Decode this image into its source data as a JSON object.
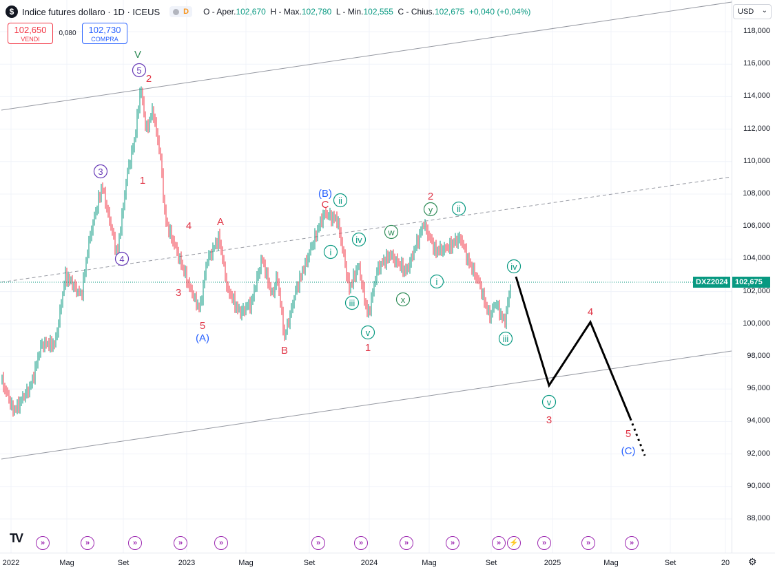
{
  "header": {
    "symbol_icon": "$",
    "title": "Indice futures dollaro · 1D · ICEUS",
    "delay_badge": "D",
    "ohlc": {
      "open_label": "O - Aper.",
      "open": "102,670",
      "high_label": "H - Max.",
      "high": "102,780",
      "low_label": "L - Min.",
      "low": "102,555",
      "close_label": "C - Chius.",
      "close": "102,675",
      "change": "+0,040 (+0,04%)"
    }
  },
  "trade": {
    "sell_price": "102,650",
    "sell_label": "VENDI",
    "spread": "0,080",
    "buy_price": "102,730",
    "buy_label": "COMPRA"
  },
  "currency_select": {
    "value": "USD",
    "icon": "chevron-down-icon"
  },
  "price_axis": {
    "labels": [
      "118,000",
      "116,000",
      "114,000",
      "112,000",
      "110,000",
      "108,000",
      "106,000",
      "104,000",
      "102,000",
      "100,000",
      "98,000",
      "96,000",
      "94,000",
      "92,000",
      "90,000",
      "88,000"
    ],
    "symbol_tag": "DXZ2024",
    "last_price_tag": "102,675"
  },
  "time_axis": {
    "labels": [
      "2022",
      "Mag",
      "Set",
      "2023",
      "Mag",
      "Set",
      "2024",
      "Mag",
      "Set",
      "2025",
      "Mag",
      "Set",
      "20"
    ]
  },
  "colors": {
    "up": "#089981",
    "down": "#f23645",
    "wave_red": "#e03546",
    "wave_blue": "#2962ff",
    "wave_purple": "#673ab7",
    "wave_green": "#2e8b57",
    "wave_teal": "#089981"
  },
  "wave_labels": [
    {
      "t": "V",
      "c": "green"
    },
    {
      "t": "5",
      "c": "purple",
      "circle": true
    },
    {
      "t": "2",
      "c": "red"
    },
    {
      "t": "3",
      "c": "purple",
      "circle": true
    },
    {
      "t": "1",
      "c": "red"
    },
    {
      "t": "4",
      "c": "purple",
      "circle": true
    },
    {
      "t": "4",
      "c": "red"
    },
    {
      "t": "3",
      "c": "red"
    },
    {
      "t": "5",
      "c": "red"
    },
    {
      "t": "(A)",
      "c": "blue"
    },
    {
      "t": "A",
      "c": "red"
    },
    {
      "t": "B",
      "c": "red"
    },
    {
      "t": "(B)",
      "c": "blue"
    },
    {
      "t": "C",
      "c": "red"
    },
    {
      "t": "ii",
      "c": "teal",
      "circle": true
    },
    {
      "t": "i",
      "c": "teal",
      "circle": true
    },
    {
      "t": "iv",
      "c": "teal",
      "circle": true
    },
    {
      "t": "iii",
      "c": "teal",
      "circle": true
    },
    {
      "t": "v",
      "c": "teal",
      "circle": true
    },
    {
      "t": "1",
      "c": "red"
    },
    {
      "t": "w",
      "c": "green",
      "circle": true
    },
    {
      "t": "x",
      "c": "green",
      "circle": true
    },
    {
      "t": "2",
      "c": "red"
    },
    {
      "t": "y",
      "c": "green",
      "circle": true
    },
    {
      "t": "ii",
      "c": "teal",
      "circle": true
    },
    {
      "t": "i",
      "c": "teal",
      "circle": true
    },
    {
      "t": "iv",
      "c": "teal",
      "circle": true
    },
    {
      "t": "iii",
      "c": "teal",
      "circle": true
    },
    {
      "t": "v",
      "c": "teal",
      "circle": true
    },
    {
      "t": "3",
      "c": "red"
    },
    {
      "t": "4",
      "c": "red"
    },
    {
      "t": "5",
      "c": "red"
    },
    {
      "t": "(C)",
      "c": "blue"
    }
  ],
  "events": {
    "icon": "calendar-event-icon",
    "flash_icon": "lightning-icon"
  },
  "branding": {
    "logo": "TV"
  }
}
